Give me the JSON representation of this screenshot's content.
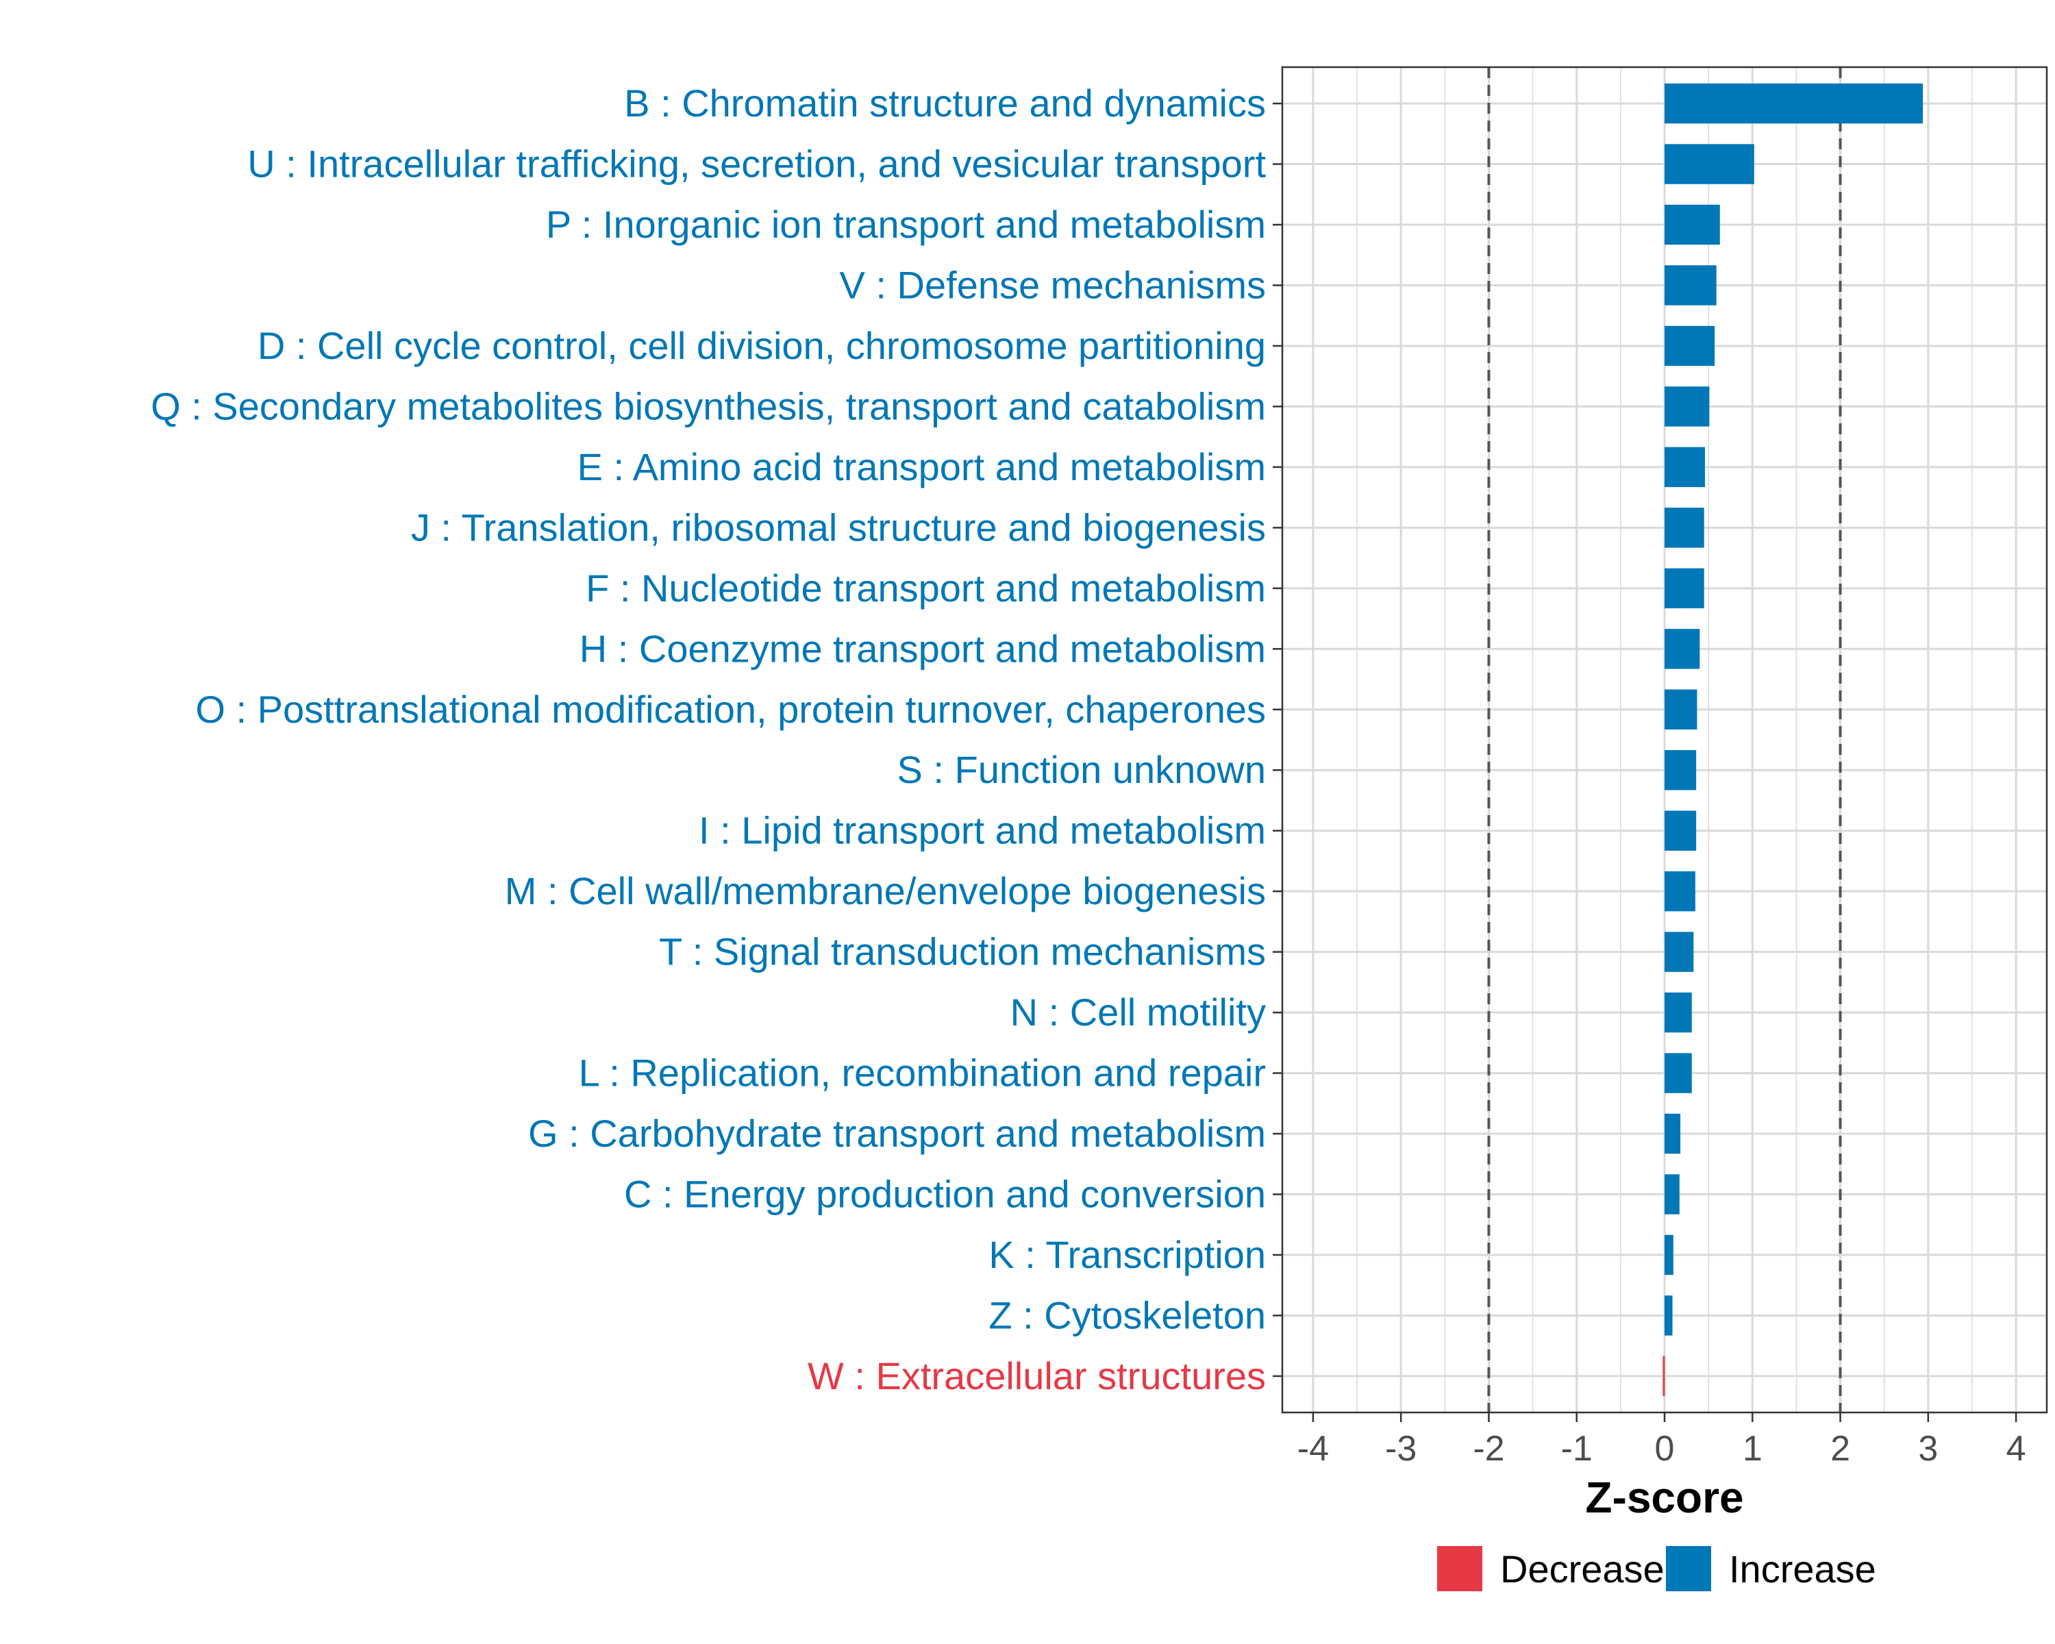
{
  "chart_data": {
    "type": "bar",
    "orientation": "horizontal",
    "xlabel": "Z-score",
    "xlim": [
      -4.35,
      4.35
    ],
    "xticks": [
      -4,
      -3,
      -2,
      -1,
      0,
      1,
      2,
      3,
      4
    ],
    "xtick_labels": [
      "-4",
      "-3",
      "-2",
      "-1",
      "0",
      "1",
      "2",
      "3",
      "4"
    ],
    "threshold_lines": [
      -2,
      2
    ],
    "grid": true,
    "categories": [
      "B : Chromatin structure and dynamics",
      "U : Intracellular trafficking, secretion, and vesicular transport",
      "P : Inorganic ion transport and metabolism",
      "V : Defense mechanisms",
      "D : Cell cycle control, cell division, chromosome partitioning",
      "Q : Secondary metabolites biosynthesis, transport and catabolism",
      "E : Amino acid transport and metabolism",
      "J : Translation, ribosomal structure and biogenesis",
      "F : Nucleotide transport and metabolism",
      "H : Coenzyme transport and metabolism",
      "O : Posttranslational modification, protein turnover, chaperones",
      "S : Function unknown",
      "I : Lipid transport and metabolism",
      "M : Cell wall/membrane/envelope biogenesis",
      "T : Signal transduction mechanisms",
      "N : Cell motility",
      "L : Replication, recombination and repair",
      "G : Carbohydrate transport and metabolism",
      "C : Energy production and conversion",
      "K : Transcription",
      "Z : Cytoskeleton",
      "W : Extracellular structures"
    ],
    "values": [
      2.94,
      1.02,
      0.63,
      0.59,
      0.57,
      0.51,
      0.46,
      0.45,
      0.45,
      0.4,
      0.37,
      0.36,
      0.36,
      0.35,
      0.33,
      0.31,
      0.31,
      0.18,
      0.17,
      0.1,
      0.09,
      -0.02
    ],
    "groups": [
      "Increase",
      "Increase",
      "Increase",
      "Increase",
      "Increase",
      "Increase",
      "Increase",
      "Increase",
      "Increase",
      "Increase",
      "Increase",
      "Increase",
      "Increase",
      "Increase",
      "Increase",
      "Increase",
      "Increase",
      "Increase",
      "Increase",
      "Increase",
      "Increase",
      "Decrease"
    ],
    "legend": [
      {
        "label": "Decrease",
        "color": "#e63946"
      },
      {
        "label": "Increase",
        "color": "#0077b6"
      }
    ],
    "legend_position": "bottom"
  },
  "colors": {
    "increase": "#0077b6",
    "decrease": "#e63946",
    "grid": "#d9d9d9",
    "threshold": "#555555",
    "axis_text": "#4d4d4d"
  }
}
